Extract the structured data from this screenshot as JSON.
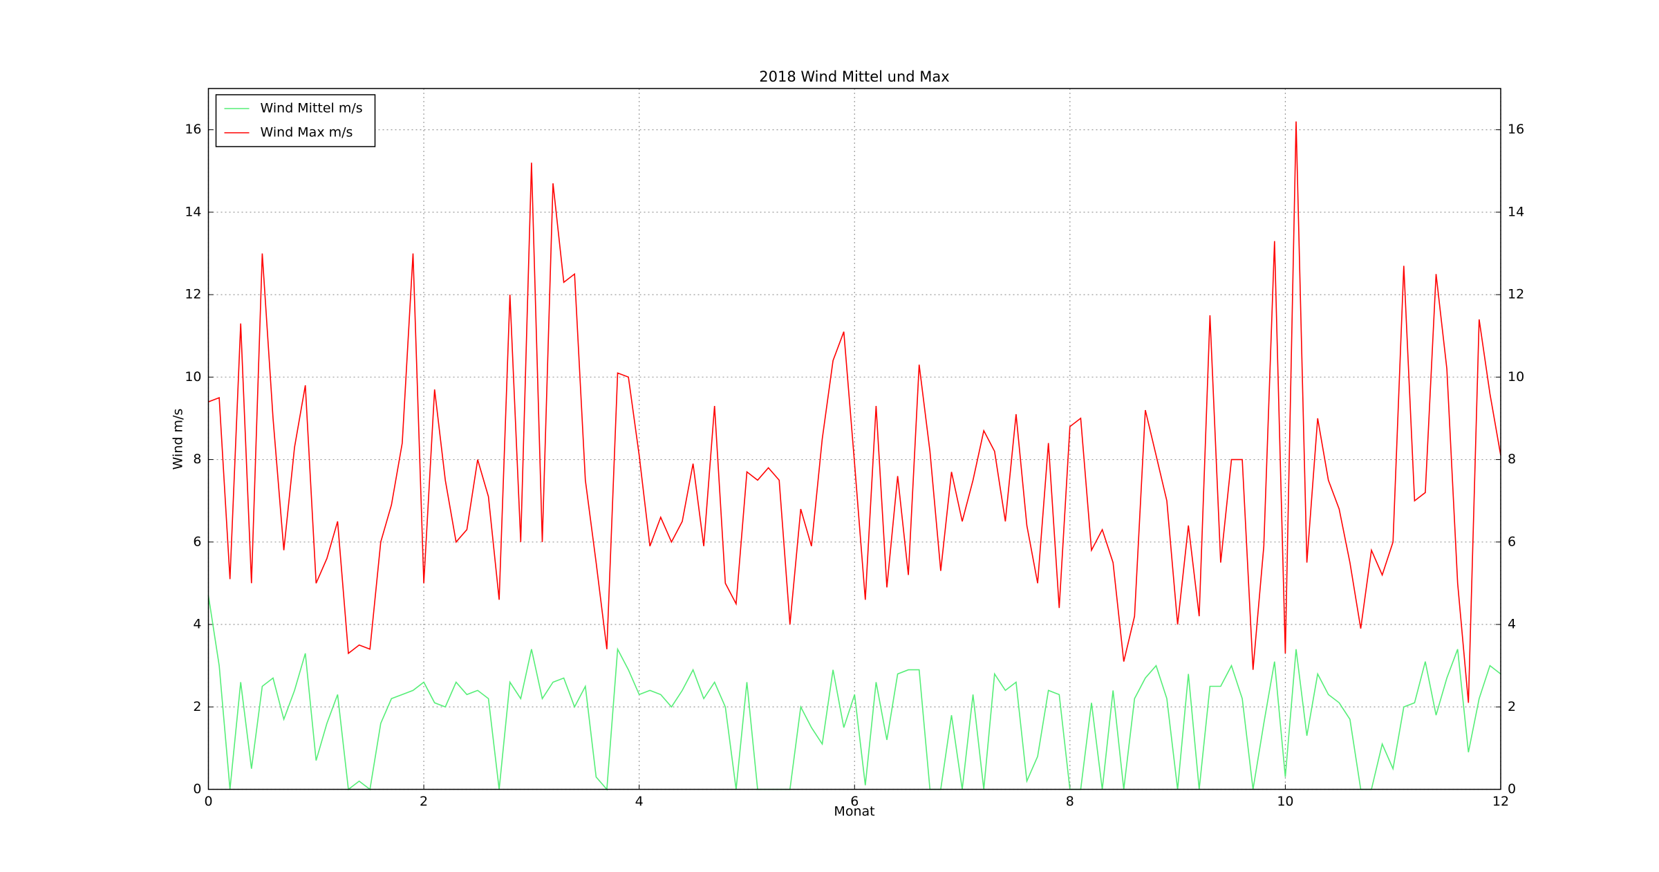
{
  "chart_data": {
    "type": "line",
    "title": "2018 Wind Mittel und Max",
    "xlabel": "Monat",
    "ylabel": "Wind m/s",
    "x": [
      0,
      0.1,
      0.2,
      0.3,
      0.4,
      0.5,
      0.6,
      0.7,
      0.8,
      0.9,
      1,
      1.1,
      1.2,
      1.3,
      1.4,
      1.5,
      1.6,
      1.7,
      1.8,
      1.9,
      2,
      2.1,
      2.2,
      2.3,
      2.4,
      2.5,
      2.6,
      2.7,
      2.8,
      2.9,
      3,
      3.1,
      3.2,
      3.3,
      3.4,
      3.5,
      3.6,
      3.7,
      3.8,
      3.9,
      4,
      4.1,
      4.2,
      4.3,
      4.4,
      4.5,
      4.6,
      4.7,
      4.8,
      4.9,
      5,
      5.1,
      5.2,
      5.3,
      5.4,
      5.5,
      5.6,
      5.7,
      5.8,
      5.9,
      6,
      6.1,
      6.2,
      6.3,
      6.4,
      6.5,
      6.6,
      6.7,
      6.8,
      6.9,
      7,
      7.1,
      7.2,
      7.3,
      7.4,
      7.5,
      7.6,
      7.7,
      7.8,
      7.9,
      8,
      8.1,
      8.2,
      8.3,
      8.4,
      8.5,
      8.6,
      8.7,
      8.8,
      8.9,
      9,
      9.1,
      9.2,
      9.3,
      9.4,
      9.5,
      9.6,
      9.7,
      9.8,
      9.9,
      10,
      10.1,
      10.2,
      10.3,
      10.4,
      10.5,
      10.6,
      10.7,
      10.8,
      10.9,
      11,
      11.1,
      11.2,
      11.3,
      11.4,
      11.5,
      11.6,
      11.7,
      11.8,
      11.9,
      12
    ],
    "series": [
      {
        "name": "Wind Mittel m/s",
        "color": "#55ee77",
        "values": [
          4.7,
          3.0,
          0.0,
          2.6,
          0.5,
          2.5,
          2.7,
          1.7,
          2.4,
          3.3,
          0.7,
          1.6,
          2.3,
          0.0,
          0.2,
          0.0,
          1.6,
          2.2,
          2.3,
          2.4,
          2.6,
          2.1,
          2.0,
          2.6,
          2.3,
          2.4,
          2.2,
          0.0,
          2.6,
          2.2,
          3.4,
          2.2,
          2.6,
          2.7,
          2.0,
          2.5,
          0.3,
          0.0,
          3.4,
          2.9,
          2.3,
          2.4,
          2.3,
          2.0,
          2.4,
          2.9,
          2.2,
          2.6,
          2.0,
          0.0,
          2.6,
          0.0,
          0.0,
          0.0,
          0.0,
          2.0,
          1.5,
          1.1,
          2.9,
          1.5,
          2.3,
          0.1,
          2.6,
          1.2,
          2.8,
          2.9,
          2.9,
          0.0,
          0.0,
          1.8,
          0.0,
          2.3,
          0.0,
          2.8,
          2.4,
          2.6,
          0.2,
          0.8,
          2.4,
          2.3,
          0.0,
          0.0,
          2.1,
          0.0,
          2.4,
          0.0,
          2.2,
          2.7,
          3.0,
          2.2,
          0.0,
          2.8,
          0.0,
          2.5,
          2.5,
          3.0,
          2.2,
          0.0,
          1.6,
          3.1,
          0.3,
          3.4,
          1.3,
          2.8,
          2.3,
          2.1,
          1.7,
          0.0,
          0.0,
          1.1,
          0.5,
          2.0,
          2.1,
          3.1,
          1.8,
          2.7,
          3.4,
          0.9,
          2.2,
          3.0,
          2.8
        ]
      },
      {
        "name": "Wind Max m/s",
        "color": "#ff0000",
        "values": [
          9.4,
          9.5,
          5.1,
          11.3,
          5.0,
          13.0,
          9.0,
          5.8,
          8.3,
          9.8,
          5.0,
          5.6,
          6.5,
          3.3,
          3.5,
          3.4,
          6.0,
          6.9,
          8.4,
          13.0,
          5.0,
          9.7,
          7.5,
          6.0,
          6.3,
          8.0,
          7.1,
          4.6,
          12.0,
          6.0,
          15.2,
          6.0,
          14.7,
          12.3,
          12.5,
          7.5,
          5.5,
          3.4,
          10.1,
          10.0,
          8.1,
          5.9,
          6.6,
          6.0,
          6.5,
          7.9,
          5.9,
          9.3,
          5.0,
          4.5,
          7.7,
          7.5,
          7.8,
          7.5,
          4.0,
          6.8,
          5.9,
          8.5,
          10.4,
          11.1,
          7.9,
          4.6,
          9.3,
          4.9,
          7.6,
          5.2,
          10.3,
          8.2,
          5.3,
          7.7,
          6.5,
          7.5,
          8.7,
          8.2,
          6.5,
          9.1,
          6.4,
          5.0,
          8.4,
          4.4,
          8.8,
          9.0,
          5.8,
          6.3,
          5.5,
          3.1,
          4.2,
          9.2,
          8.1,
          7.0,
          4.0,
          6.4,
          4.2,
          11.5,
          5.5,
          8.0,
          8.0,
          2.9,
          5.9,
          13.3,
          3.3,
          16.2,
          5.5,
          9.0,
          7.5,
          6.8,
          5.5,
          3.9,
          5.8,
          5.2,
          6.0,
          12.7,
          7.0,
          7.2,
          12.5,
          10.2,
          5.0,
          2.1,
          11.4,
          9.6,
          8.1
        ]
      }
    ],
    "xlim": [
      0,
      12
    ],
    "xticks": [
      0,
      2,
      4,
      6,
      8,
      10,
      12
    ],
    "ylim": [
      0,
      17
    ],
    "yticks": [
      0,
      2,
      4,
      6,
      8,
      10,
      12,
      14,
      16
    ],
    "grid": true,
    "legend": "upper left"
  }
}
